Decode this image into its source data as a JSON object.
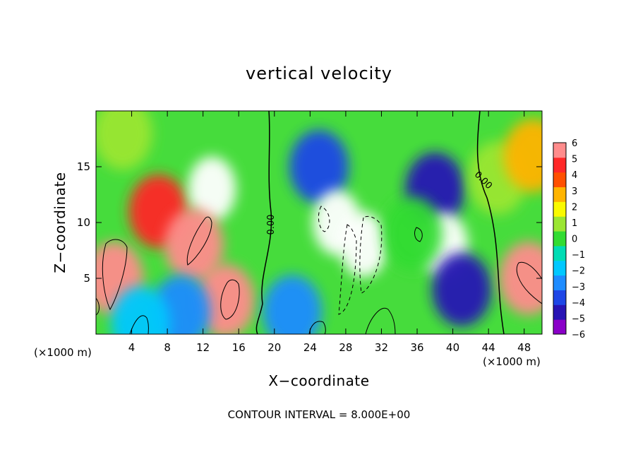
{
  "chart_data": {
    "type": "heatmap",
    "title": "vertical velocity",
    "xlabel": "X−coordinate",
    "ylabel": "Z−coordinate",
    "x_units": "(×1000 m)",
    "xlim": [
      0,
      50
    ],
    "ylim": [
      0,
      20
    ],
    "x_ticks": [
      4,
      8,
      12,
      16,
      20,
      24,
      28,
      32,
      36,
      40,
      44,
      48
    ],
    "y_ticks": [
      5,
      10,
      15
    ],
    "colorbar": {
      "range": [
        -6,
        6
      ],
      "ticks": [
        "6",
        "5",
        "4",
        "3",
        "2",
        "1",
        "0",
        "−1",
        "−2",
        "−3",
        "−4",
        "−5",
        "−6"
      ],
      "colors": [
        "#8a00c8",
        "#2814b4",
        "#1e46e6",
        "#1e8cff",
        "#00c8ff",
        "#00dcb4",
        "#32dc32",
        "#9be632",
        "#fafa00",
        "#ffb400",
        "#ff5000",
        "#ff2828",
        "#ff8c8c"
      ],
      "saturation_color": "#ffffff"
    },
    "contour_labels": [
      "0.00",
      "0.00"
    ],
    "footer": "CONTOUR INTERVAL = 8.000E+00",
    "regions": [
      {
        "x": 7,
        "z": 11,
        "value": 5
      },
      {
        "x": 13,
        "z": 13,
        "value": 6.5
      },
      {
        "x": 11,
        "z": 8,
        "value": 6
      },
      {
        "x": 14.5,
        "z": 3,
        "value": 6
      },
      {
        "x": 2,
        "z": 5,
        "value": 5.5
      },
      {
        "x": 9.5,
        "z": 2,
        "value": -3
      },
      {
        "x": 5,
        "z": 1,
        "value": -2
      },
      {
        "x": 3,
        "z": 18,
        "value": 0.5
      },
      {
        "x": 25,
        "z": 15,
        "value": -4
      },
      {
        "x": 27,
        "z": 10,
        "value": -7
      },
      {
        "x": 30,
        "z": 8,
        "value": -7
      },
      {
        "x": 38,
        "z": 13,
        "value": -5
      },
      {
        "x": 39,
        "z": 8,
        "value": 6.5
      },
      {
        "x": 35.5,
        "z": 9,
        "value": 0
      },
      {
        "x": 41,
        "z": 4,
        "value": -4.5
      },
      {
        "x": 22,
        "z": 2,
        "value": -3
      },
      {
        "x": 45,
        "z": 14,
        "value": 0.5
      },
      {
        "x": 48.5,
        "z": 5,
        "value": 5.5
      },
      {
        "x": 49,
        "z": 16,
        "value": 3
      }
    ]
  }
}
